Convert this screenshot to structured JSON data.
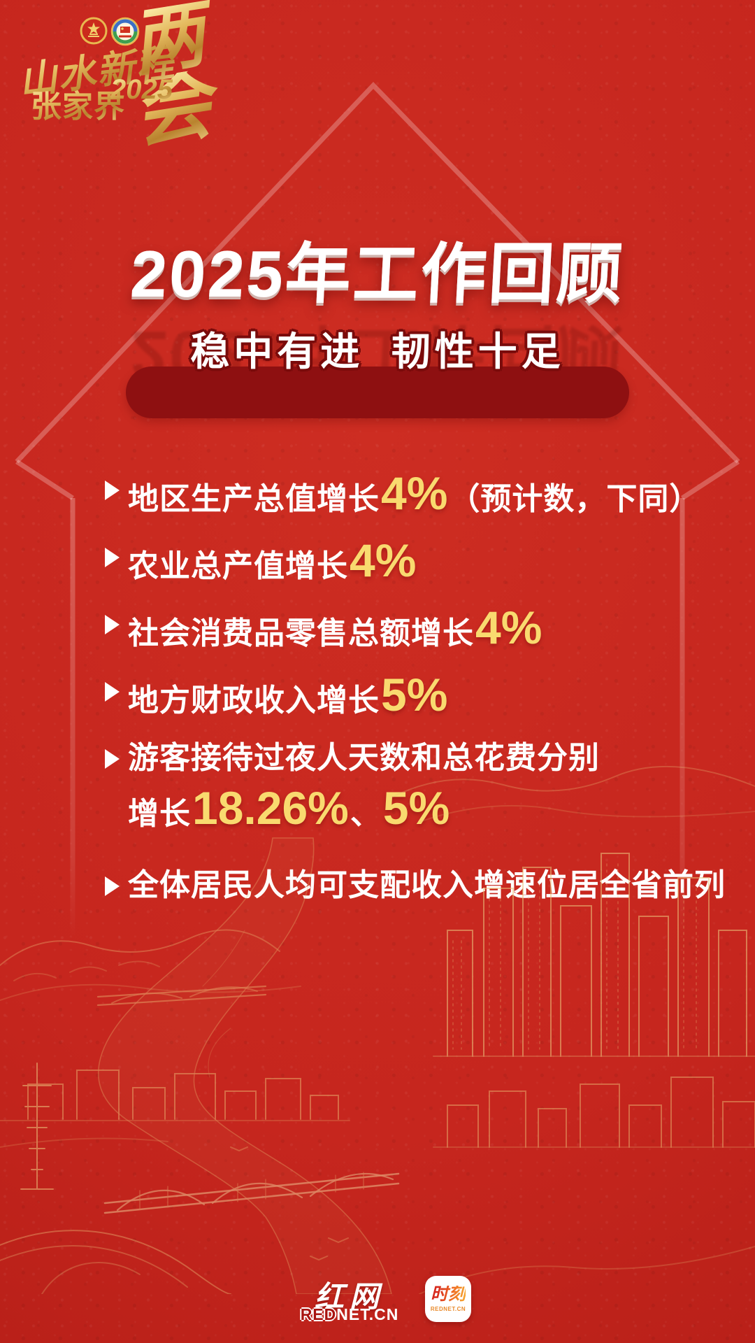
{
  "poster": {
    "colors": {
      "background": "#c6261e",
      "band": "#8e1011",
      "accent_yellow": "#f9da6f",
      "gold": "#e9c078",
      "white": "#ffffff"
    },
    "brand": {
      "slogan": "山水新程",
      "city": "张家界",
      "year": "2025",
      "event_char_top": "两",
      "event_char_bottom": "会",
      "emblems": [
        "national-emblem",
        "cppcc-emblem"
      ]
    },
    "title": {
      "text": "2025年工作回顾"
    },
    "subtitle": {
      "text": "稳中有进 韧性十足"
    },
    "bullets": [
      {
        "lines": [
          [
            {
              "type": "text",
              "value": "地区生产总值增长"
            },
            {
              "type": "number",
              "value": "4%"
            },
            {
              "type": "text",
              "value": "（预计数，下同）"
            }
          ]
        ]
      },
      {
        "lines": [
          [
            {
              "type": "text",
              "value": "农业总产值增长"
            },
            {
              "type": "number",
              "value": "4%"
            }
          ]
        ]
      },
      {
        "lines": [
          [
            {
              "type": "text",
              "value": "社会消费品零售总额增长"
            },
            {
              "type": "number",
              "value": "4%"
            }
          ]
        ]
      },
      {
        "lines": [
          [
            {
              "type": "text",
              "value": "地方财政收入增长"
            },
            {
              "type": "number",
              "value": "5%"
            }
          ]
        ]
      },
      {
        "lines": [
          [
            {
              "type": "text",
              "value": "游客接待过夜人天数和总花费分别"
            }
          ],
          [
            {
              "type": "text",
              "value": "增长"
            },
            {
              "type": "number",
              "value": "18.26%"
            },
            {
              "type": "text",
              "value": "、"
            },
            {
              "type": "number",
              "value": "5%"
            }
          ]
        ]
      },
      {
        "lines": [
          [
            {
              "type": "text",
              "value": "全体居民人均可支配收入增速位居全省前列"
            }
          ]
        ]
      }
    ],
    "footer": {
      "rednet_name": "红网",
      "rednet_domain_red": "RED",
      "rednet_domain_rest": "NET.CN",
      "moment_app_name": "时刻",
      "moment_domain": "REDNET.CN"
    }
  }
}
